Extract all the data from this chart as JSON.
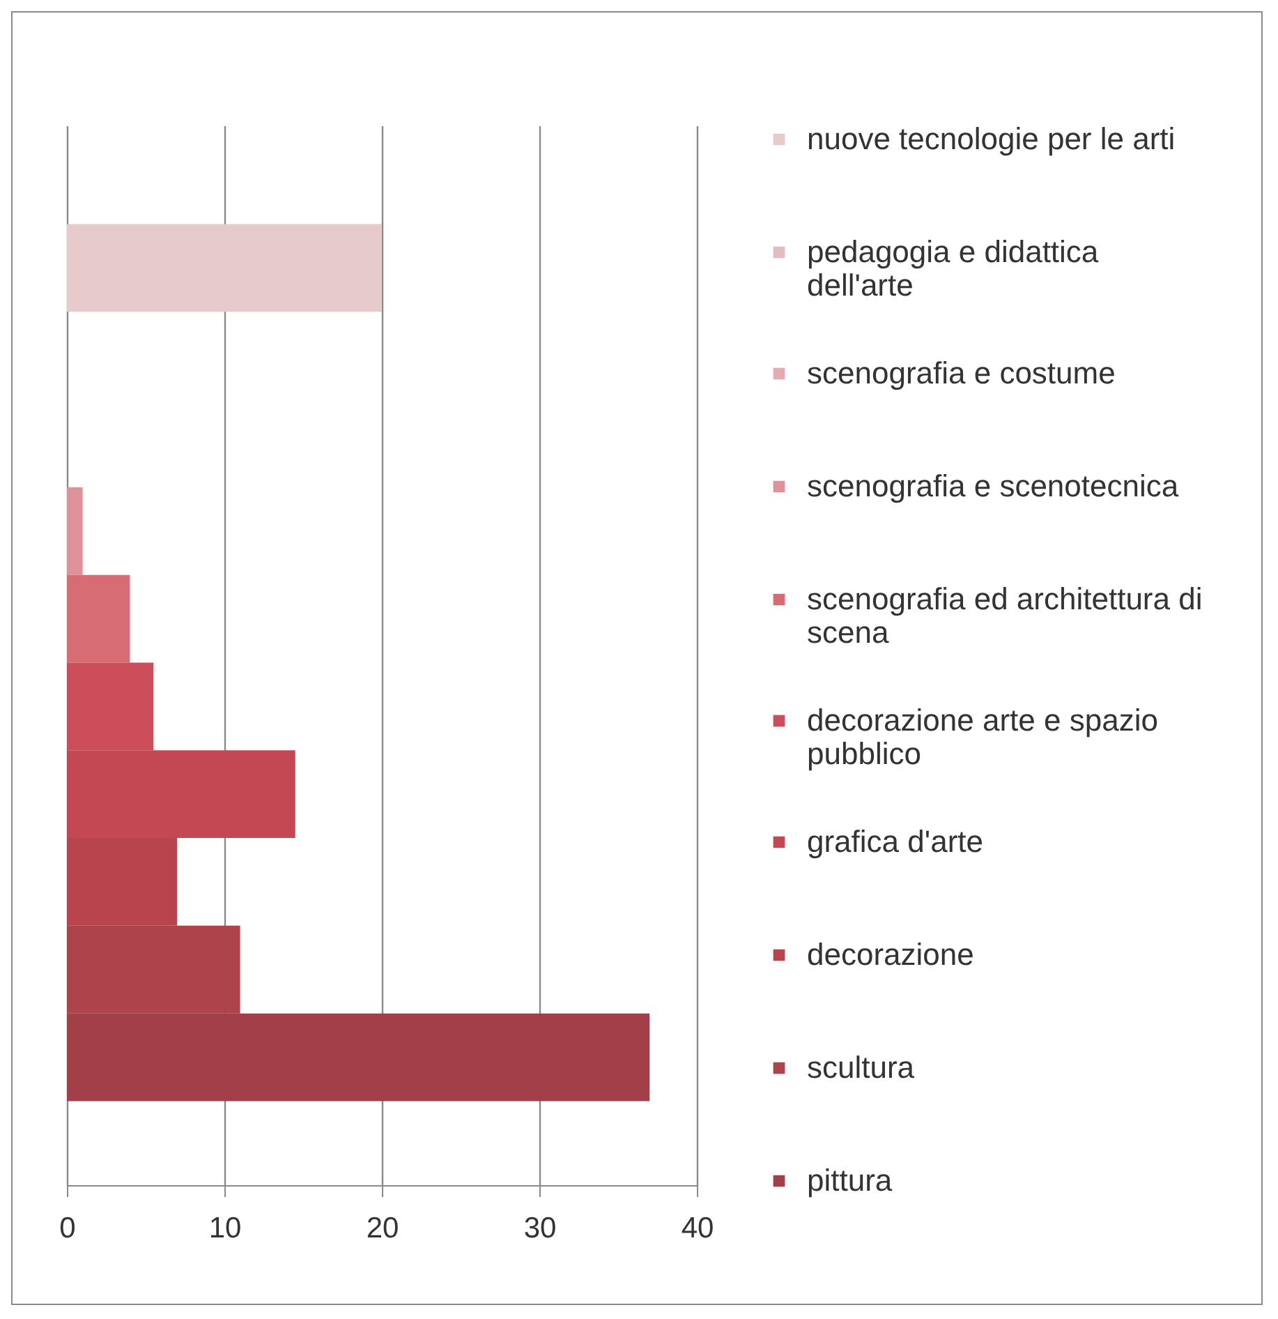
{
  "chart_data": {
    "type": "bar",
    "orientation": "horizontal",
    "categories": [
      null
    ],
    "series": [
      {
        "name": "nuove tecnologie per le arti",
        "color": "#e6cacc",
        "values": [
          20
        ]
      },
      {
        "name": "pedagogia e didattica dell'arte",
        "color": "#e3bcc0",
        "values": [
          0
        ]
      },
      {
        "name": "scenografia e costume",
        "color": "#e4abb1",
        "values": [
          0
        ]
      },
      {
        "name": "scenografia e scenotecnica",
        "color": "#e0929a",
        "values": [
          1
        ]
      },
      {
        "name": "scenografia ed architettura di scena",
        "color": "#d86c74",
        "values": [
          4
        ]
      },
      {
        "name": "decorazione arte e spazio pubblico",
        "color": "#cc4e5a",
        "values": [
          5.5
        ]
      },
      {
        "name": "grafica d'arte",
        "color": "#c44754",
        "values": [
          14.5
        ]
      },
      {
        "name": "decorazione",
        "color": "#b8454e",
        "values": [
          7
        ]
      },
      {
        "name": "scultura",
        "color": "#ad434b",
        "values": [
          11
        ]
      },
      {
        "name": "pittura",
        "color": "#a23f48",
        "values": [
          37
        ]
      }
    ],
    "xlim": [
      0,
      40
    ],
    "xticks": [
      0,
      10,
      20,
      30,
      40
    ],
    "grid": "x",
    "legend": "right",
    "tick_labels": "x"
  }
}
